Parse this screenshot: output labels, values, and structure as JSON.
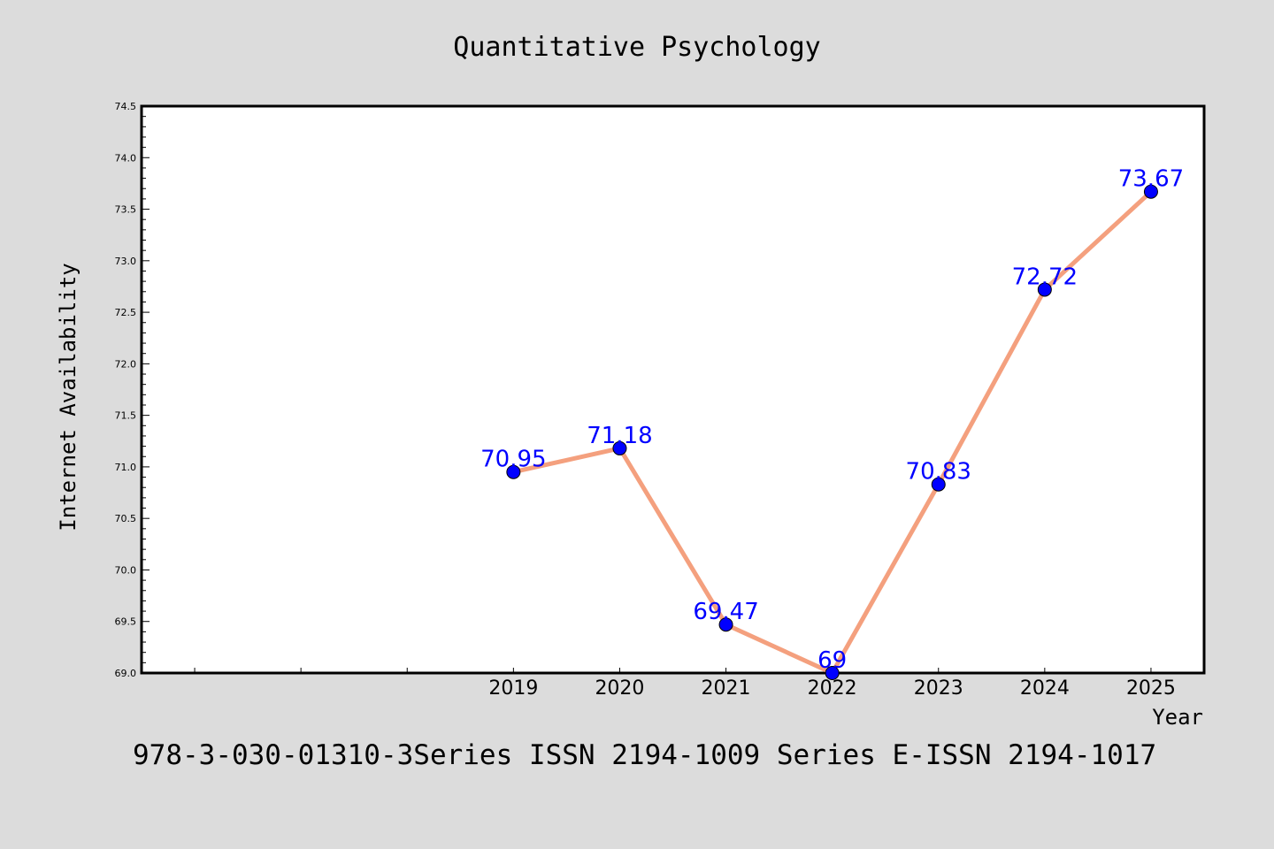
{
  "chart_data": {
    "type": "line",
    "title": "Quantitative Psychology",
    "xlabel": "Year",
    "ylabel": "Internet Availability",
    "caption": "978-3-030-01310-3Series ISSN 2194-1009 Series E-ISSN 2194-1017",
    "x": [
      "2019",
      "2020",
      "2021",
      "2022",
      "2023",
      "2024",
      "2025"
    ],
    "series": [
      {
        "values": [
          70.95,
          71.18,
          69.47,
          69.0,
          70.83,
          72.72,
          73.67
        ]
      }
    ],
    "data_labels": [
      "70.95",
      "71.18",
      "69.47",
      "69",
      "70.83",
      "72.72",
      "73.67"
    ],
    "xlim_index": [
      -3.5,
      6.5
    ],
    "ylim": [
      69.0,
      74.5
    ],
    "yticks": [
      "69.0",
      "69.5",
      "70.0",
      "70.5",
      "71.0",
      "71.5",
      "72.0",
      "72.5",
      "73.0",
      "73.5",
      "74.0",
      "74.5"
    ],
    "grid": false,
    "legend": "none",
    "colors": {
      "background": "#dcdcdc",
      "plot_area": "#ffffff",
      "line": "#f4a07e",
      "marker": "#0000ff",
      "data_label": "#0000ff",
      "axes": "#000000"
    }
  }
}
